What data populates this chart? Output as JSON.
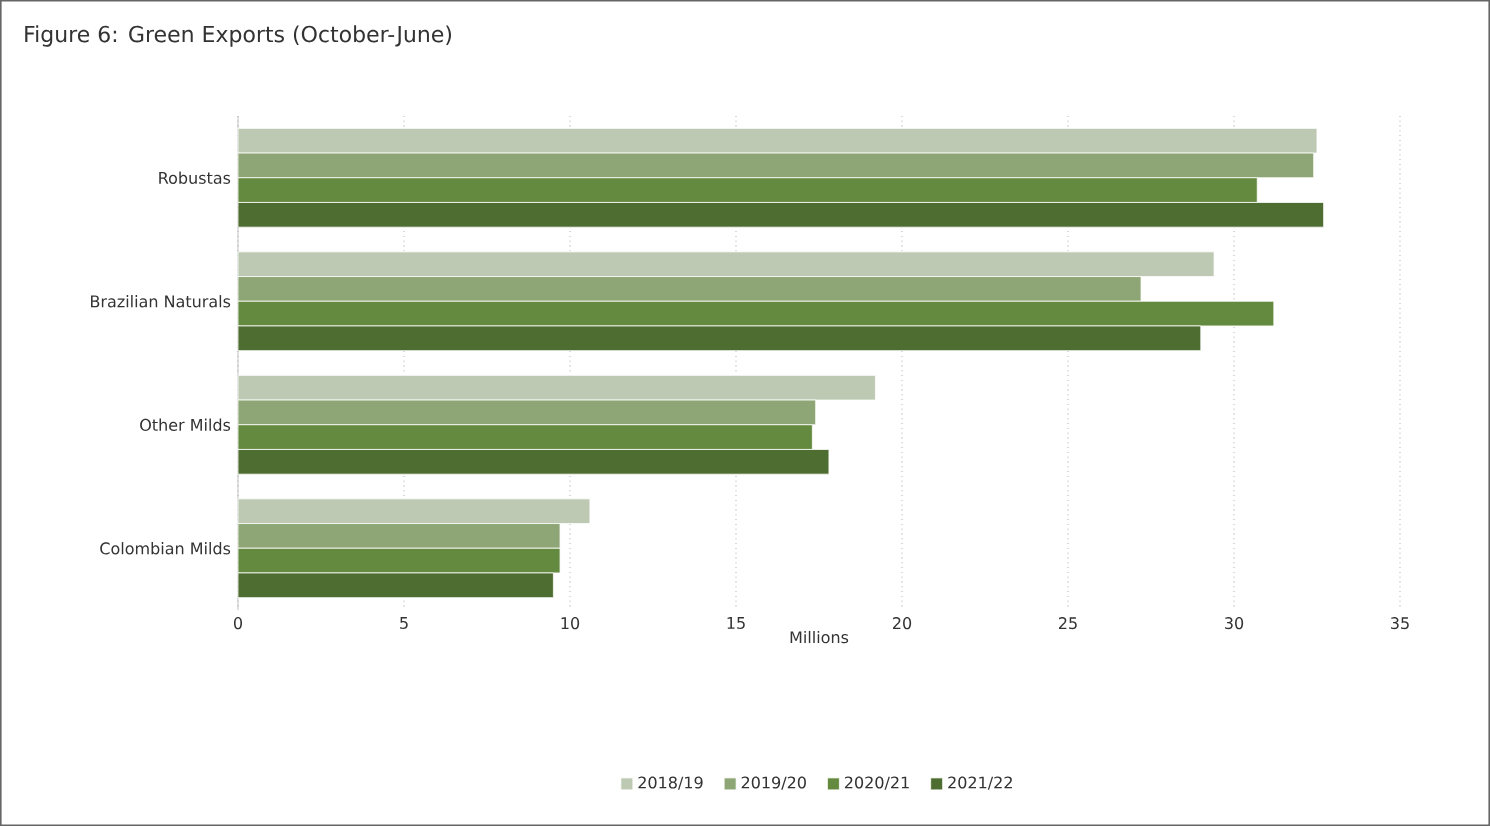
{
  "chart_data": {
    "type": "bar",
    "orientation": "horizontal",
    "title": "Figure 6: Green Exports (October-June)",
    "xlabel": "Millions",
    "categories": [
      "Robustas",
      "Brazilian Naturals",
      "Other Milds",
      "Colombian Milds"
    ],
    "series": [
      {
        "name": "2018/19",
        "color": "#bdc9b3",
        "values": [
          32.5,
          29.4,
          19.2,
          10.6
        ]
      },
      {
        "name": "2019/20",
        "color": "#8ea676",
        "values": [
          32.4,
          27.2,
          17.4,
          9.7
        ]
      },
      {
        "name": "2020/21",
        "color": "#648a3f",
        "values": [
          30.7,
          31.2,
          17.3,
          9.7
        ]
      },
      {
        "name": "2021/22",
        "color": "#4e6d30",
        "values": [
          32.7,
          29.0,
          17.8,
          9.5
        ]
      }
    ],
    "xlim": [
      0,
      35
    ],
    "xticks": [
      0,
      5,
      10,
      15,
      20,
      25,
      30,
      35
    ],
    "grid": "x",
    "legend": "bottom"
  }
}
